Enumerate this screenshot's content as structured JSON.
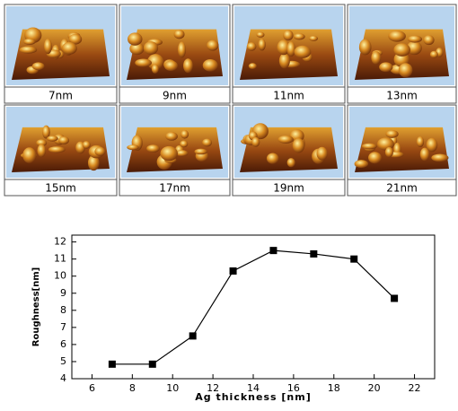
{
  "panels": [
    {
      "label": "7nm"
    },
    {
      "label": "9nm"
    },
    {
      "label": "11nm"
    },
    {
      "label": "13nm"
    },
    {
      "label": "15nm"
    },
    {
      "label": "17nm"
    },
    {
      "label": "19nm"
    },
    {
      "label": "21nm"
    }
  ],
  "chart_data": {
    "type": "line",
    "x_label": "Ag thickness [nm]",
    "y_label": "Roughness[nm]",
    "x": [
      7,
      9,
      11,
      13,
      15,
      17,
      19,
      21
    ],
    "series": [
      {
        "color": "#000000",
        "values": [
          4.85,
          4.85,
          6.5,
          10.3,
          11.5,
          11.3,
          11.0,
          8.7
        ]
      }
    ],
    "xlim": [
      5,
      23
    ],
    "xticks": [
      6,
      8,
      10,
      12,
      14,
      16,
      18,
      20,
      22
    ],
    "ylim": [
      4,
      12.4
    ],
    "yticks": [
      4,
      5,
      6,
      7,
      8,
      9,
      10,
      11,
      12
    ]
  }
}
